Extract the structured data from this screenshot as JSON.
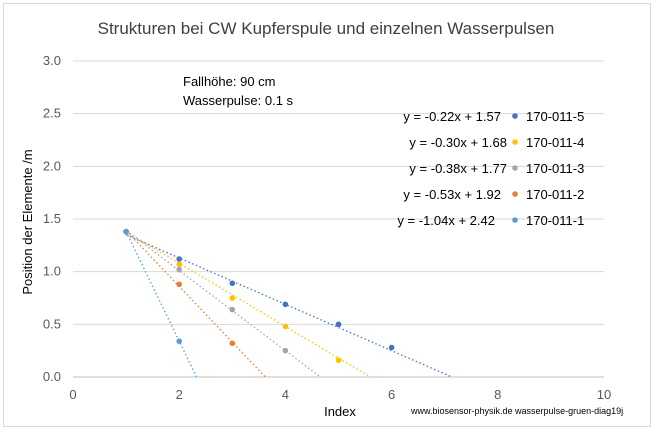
{
  "chart_data": {
    "type": "scatter",
    "title": "Strukturen bei CW Kupferspule und einzelnen Wasserpulsen",
    "xlabel": "Index",
    "ylabel": "Position der Elemente /m",
    "xlim": [
      0,
      10
    ],
    "ylim": [
      0,
      3.0
    ],
    "x_ticks": [
      "0",
      "2",
      "4",
      "6",
      "8",
      "10"
    ],
    "y_ticks": [
      "0.0",
      "0.5",
      "1.0",
      "1.5",
      "2.0",
      "2.5",
      "3.0"
    ],
    "grid": "horizontal",
    "legend_position": "right",
    "annotations": [
      "Fallhöhe: 90 cm",
      "Wasserpulse: 0.1 s"
    ],
    "credit": "www.biosensor-physik.de  wasserpulse-gruen-diag19j",
    "series": [
      {
        "name": "170-011-5",
        "color": "#4472c4",
        "x": [
          1,
          2,
          3,
          4,
          5,
          6
        ],
        "y": [
          1.38,
          1.12,
          0.89,
          0.69,
          0.5,
          0.28
        ],
        "trendline": {
          "label": "y = -0.22x + 1.57",
          "slope": -0.22,
          "intercept": 1.57
        }
      },
      {
        "name": "170-011-4",
        "color": "#ffc000",
        "x": [
          1,
          2,
          3,
          4,
          5
        ],
        "y": [
          1.38,
          1.07,
          0.75,
          0.48,
          0.16
        ],
        "trendline": {
          "label": "y = -0.30x + 1.68",
          "slope": -0.3,
          "intercept": 1.68
        }
      },
      {
        "name": "170-011-3",
        "color": "#a5a5a5",
        "x": [
          1,
          2,
          3,
          4
        ],
        "y": [
          1.38,
          1.02,
          0.64,
          0.25
        ],
        "trendline": {
          "label": "y = -0.38x + 1.77",
          "slope": -0.38,
          "intercept": 1.77
        }
      },
      {
        "name": "170-011-2",
        "color": "#ed7d31",
        "x": [
          1,
          2,
          3
        ],
        "y": [
          1.38,
          0.88,
          0.32
        ],
        "trendline": {
          "label": "y = -0.53x + 1.92",
          "slope": -0.53,
          "intercept": 1.92
        }
      },
      {
        "name": "170-011-1",
        "color": "#5b9bd5",
        "x": [
          1,
          2
        ],
        "y": [
          1.38,
          0.34
        ],
        "trendline": {
          "label": "y = -1.04x + 2.42",
          "slope": -1.04,
          "intercept": 2.42
        }
      }
    ]
  }
}
